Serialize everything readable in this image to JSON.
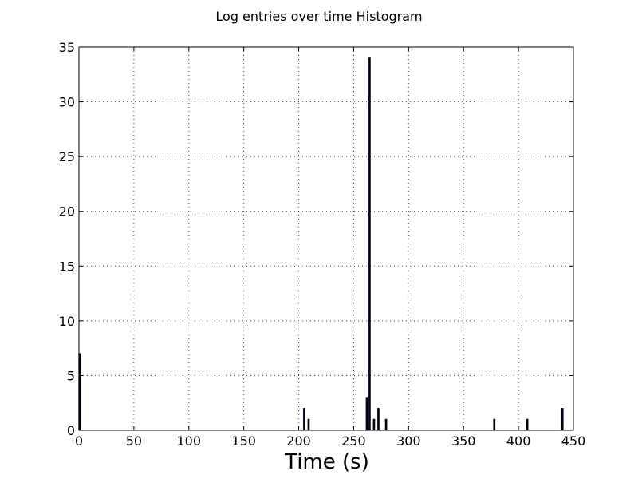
{
  "chart_data": {
    "type": "bar",
    "title": "Log entries over time Histogram",
    "xlabel": "Time (s)",
    "ylabel": "",
    "xlim": [
      0,
      450
    ],
    "ylim": [
      0,
      35
    ],
    "x_ticks": [
      "0",
      "50",
      "100",
      "150",
      "200",
      "250",
      "300",
      "350",
      "400",
      "450"
    ],
    "y_ticks": [
      "0",
      "5",
      "10",
      "15",
      "20",
      "25",
      "30",
      "35"
    ],
    "grid": true,
    "bar_color": "#00004d",
    "bin_width": 1.2,
    "bars": [
      {
        "x": 0.5,
        "value": 7
      },
      {
        "x": 205,
        "value": 2
      },
      {
        "x": 209,
        "value": 1
      },
      {
        "x": 262,
        "value": 3
      },
      {
        "x": 264.5,
        "value": 34
      },
      {
        "x": 268.5,
        "value": 1
      },
      {
        "x": 272.5,
        "value": 2
      },
      {
        "x": 279.5,
        "value": 1
      },
      {
        "x": 378,
        "value": 1
      },
      {
        "x": 408,
        "value": 1
      },
      {
        "x": 440,
        "value": 2
      }
    ]
  }
}
